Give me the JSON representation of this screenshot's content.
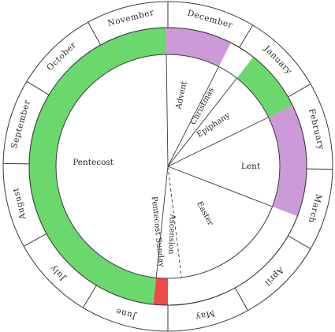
{
  "colors": {
    "green": "#6ad86c",
    "purple": "#cc99d9",
    "red": "#ee4a4a",
    "line": "#3a3a3a",
    "background": "#ffffff"
  },
  "months": [
    "January",
    "February",
    "March",
    "April",
    "May",
    "June",
    "July",
    "August",
    "September",
    "October",
    "November",
    "December"
  ],
  "seasons": {
    "advent": "Advent",
    "christmas": "Christmas",
    "epiphany": "Epiphany",
    "lent": "Lent",
    "easter": "Easter",
    "ascension": "Ascension",
    "pentecost_sunday": "Pentecost Sunday",
    "pentecost": "Pentecost"
  }
}
